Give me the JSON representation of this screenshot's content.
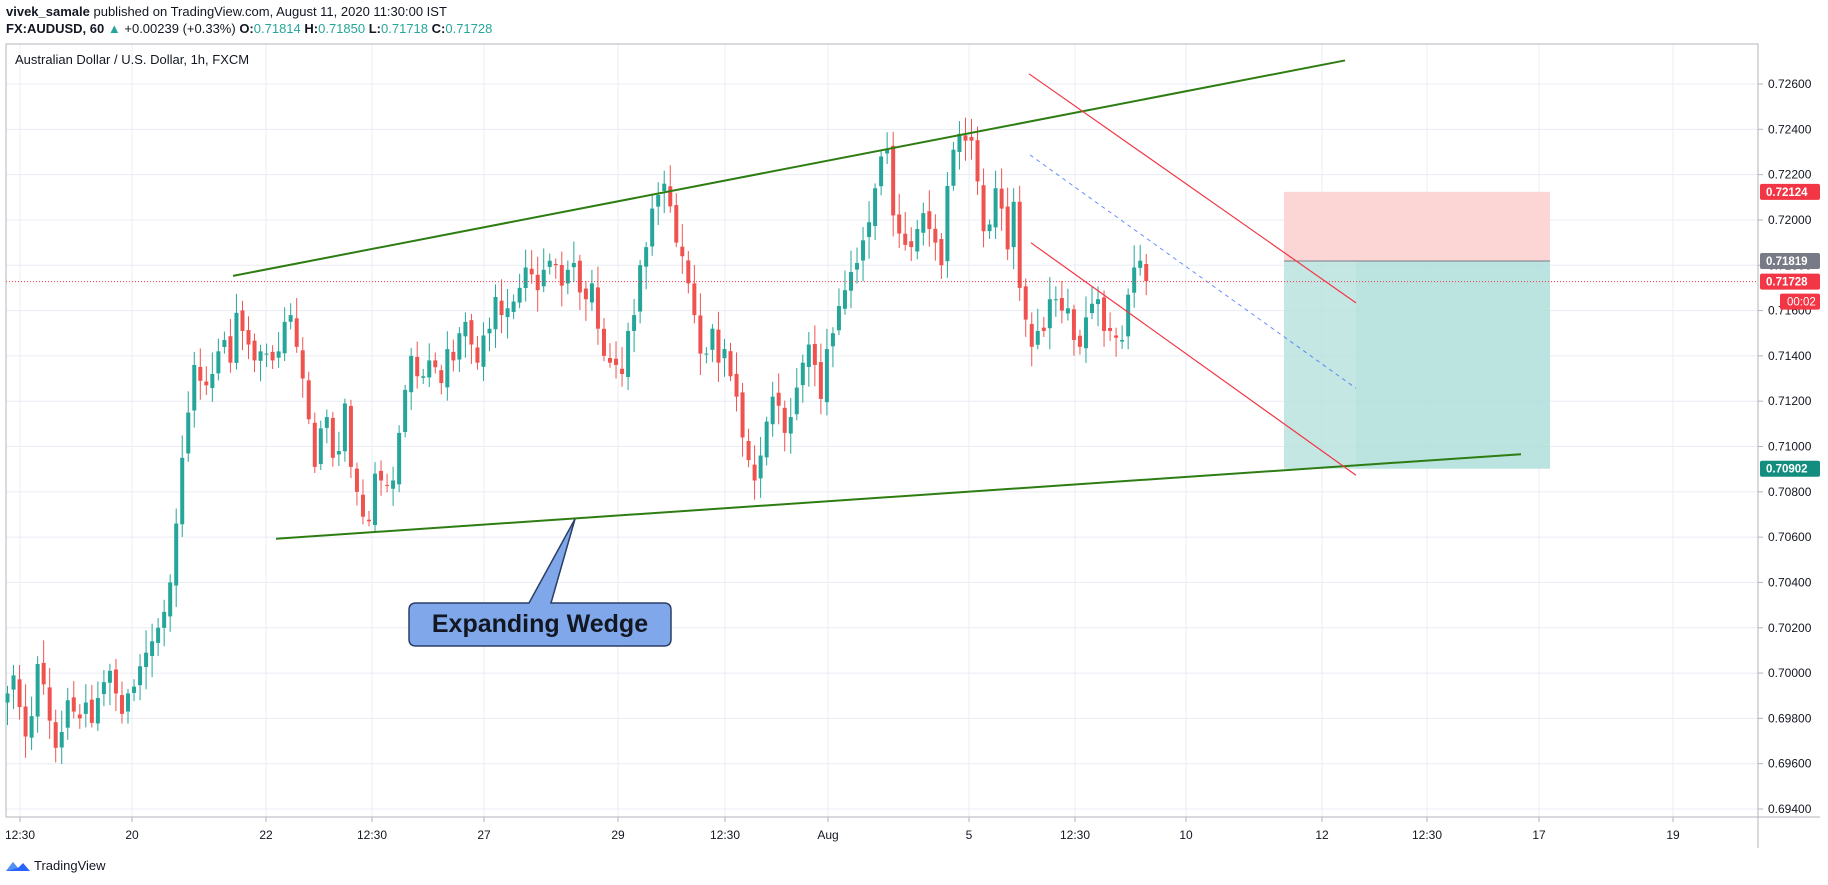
{
  "header": {
    "author": "vivek_samale",
    "published": "published on TradingView.com, August 11, 2020 11:30:00 IST",
    "symbol": "FX:AUDUSD, 60",
    "change": "+0.00239 (+0.33%)",
    "o_label": "O:",
    "o_value": "0.71814",
    "h_label": "H:",
    "h_value": "0.71850",
    "l_label": "L:",
    "l_value": "0.71718",
    "c_label": "C:",
    "c_value": "0.71728"
  },
  "chart_title": "Australian Dollar / U.S. Dollar, 1h, FXCM",
  "annotation": "Expanding Wedge",
  "brand": "TradingView",
  "colors": {
    "up": "#26a69a",
    "down": "#ef5350",
    "wedge": "#2e7d12",
    "channel": "#f23645",
    "target": "#b2dfdb",
    "stop": "#fcd5d5",
    "callout": "#7fa7ea",
    "grid": "#e8edf3"
  },
  "chart_data": {
    "type": "candlestick",
    "ylim": [
      0.694,
      0.7275
    ],
    "y_ticks": [
      "0.72600",
      "0.72400",
      "0.72200",
      "0.72000",
      "0.71800",
      "0.71600",
      "0.71400",
      "0.71200",
      "0.71000",
      "0.70800",
      "0.70600",
      "0.70400",
      "0.70200",
      "0.70000",
      "0.69800",
      "0.69600",
      "0.69400"
    ],
    "x_ticks": [
      "12:30",
      "20",
      "22",
      "12:30",
      "27",
      "29",
      "12:30",
      "Aug",
      "5",
      "12:30",
      "10",
      "12",
      "12:30",
      "17",
      "19"
    ],
    "price_labels": [
      {
        "value": 0.72124,
        "text": "0.72124",
        "color": "#f23645"
      },
      {
        "value": 0.71819,
        "text": "0.71819",
        "color": "#787b86"
      },
      {
        "value": 0.71728,
        "text": "0.71728",
        "color": "#f23645"
      },
      {
        "value": 0.70902,
        "text": "0.70902",
        "color": "#138d7e"
      }
    ],
    "countdown": "00:02",
    "last_price": 0.71728,
    "close_path": [
      [
        0,
        0.6991
      ],
      [
        1,
        0.6999
      ],
      [
        2,
        0.6985
      ],
      [
        3,
        0.6972
      ],
      [
        4,
        0.6981
      ],
      [
        5,
        0.7004
      ],
      [
        6,
        0.6995
      ],
      [
        7,
        0.6979
      ],
      [
        8,
        0.6967
      ],
      [
        9,
        0.6974
      ],
      [
        10,
        0.6988
      ],
      [
        11,
        0.6983
      ],
      [
        12,
        0.698
      ],
      [
        13,
        0.6987
      ],
      [
        14,
        0.6978
      ],
      [
        15,
        0.6989
      ],
      [
        16,
        0.6996
      ],
      [
        17,
        0.7001
      ],
      [
        18,
        0.6991
      ],
      [
        19,
        0.6982
      ],
      [
        20,
        0.6991
      ],
      [
        21,
        0.6994
      ],
      [
        22,
        0.7003
      ],
      [
        23,
        0.7009
      ],
      [
        24,
        0.7014
      ],
      [
        25,
        0.702
      ],
      [
        26,
        0.7027
      ],
      [
        27,
        0.704
      ],
      [
        28,
        0.7066
      ],
      [
        29,
        0.7095
      ],
      [
        30,
        0.7115
      ],
      [
        31,
        0.7136
      ],
      [
        32,
        0.7129
      ],
      [
        33,
        0.7127
      ],
      [
        34,
        0.7132
      ],
      [
        35,
        0.7142
      ],
      [
        36,
        0.7147
      ],
      [
        37,
        0.7137
      ],
      [
        38,
        0.7159
      ],
      [
        39,
        0.7151
      ],
      [
        40,
        0.7145
      ],
      [
        41,
        0.7138
      ],
      [
        42,
        0.7142
      ],
      [
        43,
        0.7141
      ],
      [
        44,
        0.7138
      ],
      [
        45,
        0.7142
      ],
      [
        46,
        0.7155
      ],
      [
        47,
        0.7158
      ],
      [
        48,
        0.7144
      ],
      [
        49,
        0.713
      ],
      [
        50,
        0.7112
      ],
      [
        51,
        0.7091
      ],
      [
        52,
        0.7108
      ],
      [
        53,
        0.7113
      ],
      [
        54,
        0.7095
      ],
      [
        55,
        0.7098
      ],
      [
        56,
        0.7119
      ],
      [
        57,
        0.7091
      ],
      [
        58,
        0.708
      ],
      [
        59,
        0.7069
      ],
      [
        60,
        0.7067
      ],
      [
        61,
        0.7088
      ],
      [
        62,
        0.7085
      ],
      [
        63,
        0.7083
      ],
      [
        64,
        0.7085
      ],
      [
        65,
        0.7106
      ],
      [
        66,
        0.7125
      ],
      [
        67,
        0.714
      ],
      [
        68,
        0.7131
      ],
      [
        69,
        0.7131
      ],
      [
        70,
        0.7138
      ],
      [
        71,
        0.7135
      ],
      [
        72,
        0.7128
      ],
      [
        73,
        0.7143
      ],
      [
        74,
        0.7138
      ],
      [
        75,
        0.715
      ],
      [
        76,
        0.7155
      ],
      [
        77,
        0.7145
      ],
      [
        78,
        0.7137
      ],
      [
        79,
        0.7149
      ],
      [
        80,
        0.7152
      ],
      [
        81,
        0.7166
      ],
      [
        82,
        0.7158
      ],
      [
        83,
        0.7161
      ],
      [
        84,
        0.7164
      ],
      [
        85,
        0.717
      ],
      [
        86,
        0.7179
      ],
      [
        87,
        0.7176
      ],
      [
        88,
        0.7169
      ],
      [
        89,
        0.7178
      ],
      [
        90,
        0.7182
      ],
      [
        91,
        0.718
      ],
      [
        92,
        0.7171
      ],
      [
        93,
        0.7178
      ],
      [
        94,
        0.7181
      ],
      [
        95,
        0.7168
      ],
      [
        96,
        0.7165
      ],
      [
        97,
        0.7172
      ],
      [
        98,
        0.7152
      ],
      [
        99,
        0.714
      ],
      [
        100,
        0.7137
      ],
      [
        101,
        0.7136
      ],
      [
        102,
        0.7132
      ],
      [
        103,
        0.7151
      ],
      [
        104,
        0.7158
      ],
      [
        105,
        0.718
      ],
      [
        106,
        0.7188
      ],
      [
        107,
        0.7205
      ],
      [
        108,
        0.7211
      ],
      [
        109,
        0.7216
      ],
      [
        110,
        0.7206
      ],
      [
        111,
        0.719
      ],
      [
        112,
        0.7184
      ],
      [
        113,
        0.7172
      ],
      [
        114,
        0.7158
      ],
      [
        115,
        0.7141
      ],
      [
        116,
        0.7141
      ],
      [
        117,
        0.7152
      ],
      [
        118,
        0.7137
      ],
      [
        119,
        0.7143
      ],
      [
        120,
        0.7131
      ],
      [
        121,
        0.7122
      ],
      [
        122,
        0.7104
      ],
      [
        123,
        0.7094
      ],
      [
        124,
        0.7085
      ],
      [
        125,
        0.7096
      ],
      [
        126,
        0.7111
      ],
      [
        127,
        0.7122
      ],
      [
        128,
        0.7118
      ],
      [
        129,
        0.7106
      ],
      [
        130,
        0.7113
      ],
      [
        131,
        0.7126
      ],
      [
        132,
        0.7137
      ],
      [
        133,
        0.7145
      ],
      [
        134,
        0.7136
      ],
      [
        135,
        0.7121
      ],
      [
        136,
        0.7143
      ],
      [
        137,
        0.715
      ],
      [
        138,
        0.7162
      ],
      [
        139,
        0.7169
      ],
      [
        140,
        0.7177
      ],
      [
        141,
        0.7181
      ],
      [
        142,
        0.7191
      ],
      [
        143,
        0.7199
      ],
      [
        144,
        0.7214
      ],
      [
        145,
        0.7228
      ],
      [
        146,
        0.7231
      ],
      [
        147,
        0.7202
      ],
      [
        148,
        0.7194
      ],
      [
        149,
        0.7189
      ],
      [
        150,
        0.7188
      ],
      [
        151,
        0.7196
      ],
      [
        152,
        0.7203
      ],
      [
        153,
        0.7196
      ],
      [
        154,
        0.719
      ],
      [
        155,
        0.718
      ],
      [
        156,
        0.7215
      ],
      [
        157,
        0.7231
      ],
      [
        158,
        0.7238
      ],
      [
        159,
        0.7235
      ],
      [
        160,
        0.7235
      ],
      [
        161,
        0.7217
      ],
      [
        162,
        0.7195
      ],
      [
        163,
        0.7198
      ],
      [
        164,
        0.7214
      ],
      [
        165,
        0.7205
      ],
      [
        166,
        0.7187
      ],
      [
        167,
        0.7208
      ],
      [
        168,
        0.717
      ],
      [
        169,
        0.7156
      ],
      [
        170,
        0.7144
      ],
      [
        171,
        0.7151
      ],
      [
        172,
        0.7151
      ],
      [
        173,
        0.7165
      ],
      [
        174,
        0.7165
      ],
      [
        175,
        0.716
      ],
      [
        176,
        0.7161
      ],
      [
        177,
        0.7147
      ],
      [
        178,
        0.7144
      ],
      [
        179,
        0.7157
      ],
      [
        180,
        0.7163
      ],
      [
        181,
        0.7165
      ],
      [
        182,
        0.7151
      ],
      [
        183,
        0.7151
      ],
      [
        184,
        0.7148
      ],
      [
        185,
        0.7147
      ],
      [
        186,
        0.7167
      ],
      [
        187,
        0.7179
      ],
      [
        188,
        0.7182
      ],
      [
        189,
        0.7173
      ]
    ],
    "drawings": {
      "wedge_upper": [
        [
          0.7175,
          -0.2
        ],
        [
          0.727,
          0.71
        ]
      ],
      "wedge_lower": [
        [
          0.7059,
          -0.2
        ],
        [
          0.7096,
          0.86
        ]
      ],
      "channel_upper": [
        [
          0.7264,
          0.57
        ],
        [
          0.7163,
          0.755
        ]
      ],
      "channel_lower": [
        [
          0.7188,
          0.57
        ],
        [
          0.7088,
          0.755
        ]
      ],
      "channel_mid": [
        [
          0.7228,
          0.57
        ],
        [
          0.7125,
          0.755
        ]
      ],
      "entry": 0.71819,
      "stop": 0.72124,
      "target": 0.70902
    }
  }
}
